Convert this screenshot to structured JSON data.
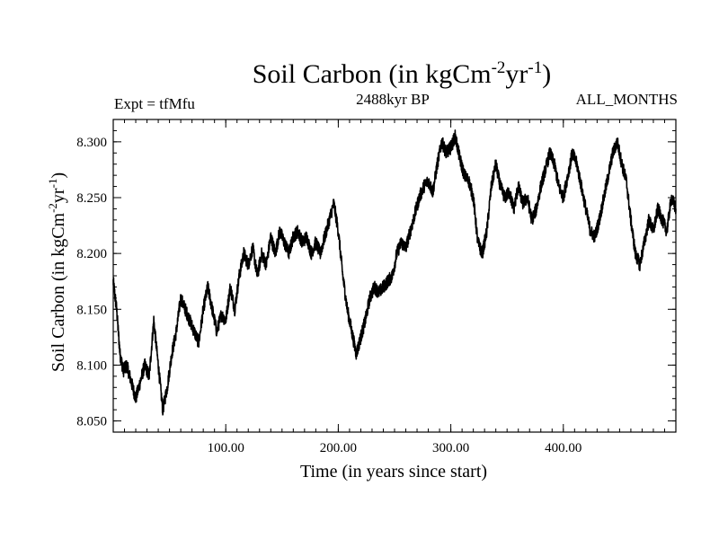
{
  "chart_data": {
    "type": "line",
    "title": {
      "prefix": "Soil Carbon (in kgCm",
      "sup1": "-2",
      "mid": "yr",
      "sup2": "-1",
      "suffix": ")"
    },
    "subtitle_left": "Expt = tfMfu",
    "subtitle_center": "2488kyr BP",
    "subtitle_right": "ALL_MONTHS",
    "xlabel": "Time (in years since start)",
    "ylabel": {
      "prefix": "Soil Carbon (in kgCm",
      "sup1": "-2",
      "mid": "yr",
      "sup2": "-1",
      "suffix": ")"
    },
    "xlim": [
      0,
      500
    ],
    "ylim": [
      8.04,
      8.32
    ],
    "x_ticks": [
      100,
      200,
      300,
      400
    ],
    "x_tick_labels": [
      "100.00",
      "200.00",
      "300.00",
      "400.00"
    ],
    "y_ticks": [
      8.05,
      8.1,
      8.15,
      8.2,
      8.25,
      8.3
    ],
    "y_tick_labels": [
      "8.050",
      "8.100",
      "8.150",
      "8.200",
      "8.250",
      "8.300"
    ],
    "x_minor_step": 10,
    "y_minor_step": 0.01,
    "grid": false,
    "line_color": "#000000",
    "series": [
      {
        "name": "Soil Carbon",
        "x": [
          0,
          3,
          6,
          9,
          12,
          16,
          20,
          24,
          28,
          32,
          36,
          40,
          44,
          48,
          52,
          56,
          60,
          64,
          68,
          72,
          76,
          80,
          84,
          88,
          92,
          96,
          100,
          104,
          108,
          112,
          116,
          120,
          124,
          128,
          132,
          136,
          140,
          144,
          148,
          152,
          156,
          160,
          164,
          168,
          172,
          176,
          180,
          184,
          188,
          192,
          196,
          200,
          204,
          208,
          212,
          216,
          220,
          224,
          228,
          232,
          236,
          240,
          244,
          248,
          252,
          256,
          260,
          264,
          268,
          272,
          276,
          280,
          284,
          288,
          292,
          296,
          300,
          304,
          308,
          312,
          316,
          320,
          324,
          328,
          332,
          336,
          340,
          344,
          348,
          352,
          356,
          360,
          364,
          368,
          372,
          376,
          380,
          384,
          388,
          392,
          396,
          400,
          404,
          408,
          412,
          416,
          420,
          424,
          428,
          432,
          436,
          440,
          444,
          448,
          452,
          456,
          460,
          464,
          468,
          472,
          476,
          480,
          484,
          488,
          492,
          496,
          500
        ],
        "values": [
          8.175,
          8.15,
          8.11,
          8.095,
          8.1,
          8.085,
          8.07,
          8.085,
          8.1,
          8.09,
          8.14,
          8.1,
          8.06,
          8.08,
          8.11,
          8.13,
          8.16,
          8.15,
          8.14,
          8.13,
          8.12,
          8.15,
          8.17,
          8.15,
          8.13,
          8.145,
          8.14,
          8.17,
          8.15,
          8.18,
          8.2,
          8.19,
          8.205,
          8.18,
          8.2,
          8.19,
          8.215,
          8.2,
          8.22,
          8.21,
          8.2,
          8.215,
          8.22,
          8.21,
          8.215,
          8.2,
          8.21,
          8.2,
          8.215,
          8.23,
          8.245,
          8.22,
          8.18,
          8.15,
          8.13,
          8.11,
          8.125,
          8.14,
          8.16,
          8.17,
          8.165,
          8.17,
          8.175,
          8.18,
          8.2,
          8.21,
          8.205,
          8.22,
          8.235,
          8.25,
          8.26,
          8.265,
          8.255,
          8.28,
          8.3,
          8.29,
          8.295,
          8.305,
          8.285,
          8.27,
          8.265,
          8.25,
          8.21,
          8.2,
          8.22,
          8.26,
          8.28,
          8.26,
          8.25,
          8.255,
          8.24,
          8.26,
          8.245,
          8.25,
          8.23,
          8.24,
          8.26,
          8.275,
          8.29,
          8.28,
          8.26,
          8.25,
          8.27,
          8.29,
          8.28,
          8.26,
          8.24,
          8.22,
          8.215,
          8.23,
          8.25,
          8.27,
          8.29,
          8.3,
          8.28,
          8.265,
          8.23,
          8.2,
          8.19,
          8.21,
          8.23,
          8.22,
          8.24,
          8.23,
          8.22,
          8.25,
          8.24
        ]
      }
    ]
  }
}
